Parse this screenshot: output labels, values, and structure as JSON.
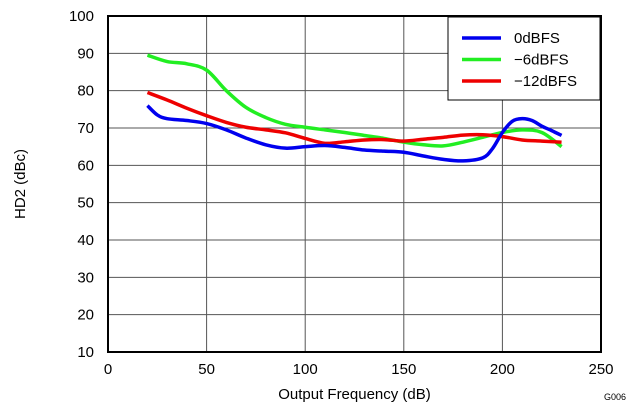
{
  "chart_data": {
    "type": "line",
    "title": "",
    "xlabel": "Output Frequency (dB)",
    "ylabel": "HD2 (dBc)",
    "xlim": [
      0,
      250
    ],
    "ylim": [
      10,
      100
    ],
    "xticks": [
      0,
      50,
      100,
      150,
      200,
      250
    ],
    "yticks": [
      10,
      20,
      30,
      40,
      50,
      60,
      70,
      80,
      90,
      100
    ],
    "grid": true,
    "legend_position": "top-right",
    "series": [
      {
        "name": "0dBFS",
        "color": "#0000ee",
        "x": [
          20,
          25,
          30,
          40,
          50,
          60,
          70,
          80,
          90,
          100,
          110,
          120,
          130,
          140,
          150,
          160,
          170,
          180,
          190,
          195,
          200,
          205,
          210,
          215,
          220,
          225,
          230
        ],
        "y": [
          76,
          73.5,
          72.5,
          72,
          71.2,
          69.5,
          67.3,
          65.5,
          64.6,
          65,
          65.3,
          64.8,
          64.1,
          63.8,
          63.5,
          62.5,
          61.6,
          61.2,
          62,
          64.5,
          68.8,
          71.8,
          72.5,
          72,
          70.5,
          69.3,
          68
        ]
      },
      {
        "name": "−6dBFS",
        "color": "#22ee22",
        "x": [
          20,
          30,
          40,
          50,
          60,
          70,
          80,
          90,
          100,
          110,
          120,
          130,
          140,
          150,
          160,
          170,
          180,
          190,
          200,
          210,
          220,
          230
        ],
        "y": [
          89.5,
          87.8,
          87.2,
          85.5,
          80,
          75.5,
          72.8,
          71,
          70.2,
          69.5,
          68.8,
          68,
          67.2,
          66.2,
          65.5,
          65.2,
          66.2,
          67.5,
          68.8,
          69.5,
          68.8,
          65
        ]
      },
      {
        "name": "−12dBFS",
        "color": "#ee0000",
        "x": [
          20,
          30,
          40,
          50,
          60,
          70,
          80,
          90,
          100,
          110,
          120,
          130,
          140,
          150,
          160,
          170,
          180,
          190,
          200,
          210,
          220,
          230
        ],
        "y": [
          79.5,
          77.5,
          75.3,
          73.3,
          71.5,
          70.2,
          69.5,
          68.7,
          67.2,
          65.9,
          66.3,
          66.8,
          66.9,
          66.5,
          67,
          67.5,
          68.1,
          68.2,
          67.7,
          66.8,
          66.5,
          66.2
        ]
      }
    ]
  },
  "figure_id": "G006"
}
